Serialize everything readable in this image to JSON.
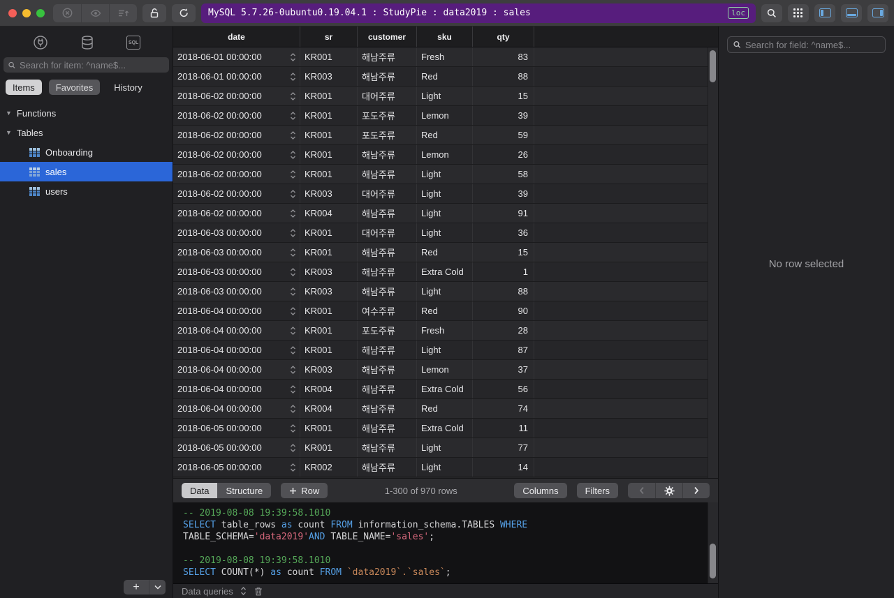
{
  "titlebar": {
    "title": "MySQL 5.7.26-0ubuntu0.19.04.1 : StudyPie : data2019 : sales",
    "loc_badge": "loc"
  },
  "sidebar": {
    "search_placeholder": "Search for item: ^name$...",
    "tabs": {
      "items": "Items",
      "favorites": "Favorites",
      "history": "History"
    },
    "sections": {
      "functions": "Functions",
      "tables": "Tables"
    },
    "tables": [
      {
        "label": "Onboarding",
        "selected": false
      },
      {
        "label": "sales",
        "selected": true
      },
      {
        "label": "users",
        "selected": false
      }
    ],
    "add_button": "+"
  },
  "grid": {
    "columns": [
      "date",
      "sr",
      "customer",
      "sku",
      "qty"
    ],
    "rows": [
      [
        "2018-06-01 00:00:00",
        "KR001",
        "해남주류",
        "Fresh",
        "83"
      ],
      [
        "2018-06-01 00:00:00",
        "KR003",
        "해남주류",
        "Red",
        "88"
      ],
      [
        "2018-06-02 00:00:00",
        "KR001",
        "대어주류",
        "Light",
        "15"
      ],
      [
        "2018-06-02 00:00:00",
        "KR001",
        "포도주류",
        "Lemon",
        "39"
      ],
      [
        "2018-06-02 00:00:00",
        "KR001",
        "포도주류",
        "Red",
        "59"
      ],
      [
        "2018-06-02 00:00:00",
        "KR001",
        "해남주류",
        "Lemon",
        "26"
      ],
      [
        "2018-06-02 00:00:00",
        "KR001",
        "해남주류",
        "Light",
        "58"
      ],
      [
        "2018-06-02 00:00:00",
        "KR003",
        "대어주류",
        "Light",
        "39"
      ],
      [
        "2018-06-02 00:00:00",
        "KR004",
        "해남주류",
        "Light",
        "91"
      ],
      [
        "2018-06-03 00:00:00",
        "KR001",
        "대어주류",
        "Light",
        "36"
      ],
      [
        "2018-06-03 00:00:00",
        "KR001",
        "해남주류",
        "Red",
        "15"
      ],
      [
        "2018-06-03 00:00:00",
        "KR003",
        "해남주류",
        "Extra Cold",
        "1"
      ],
      [
        "2018-06-03 00:00:00",
        "KR003",
        "해남주류",
        "Light",
        "88"
      ],
      [
        "2018-06-04 00:00:00",
        "KR001",
        "여수주류",
        "Red",
        "90"
      ],
      [
        "2018-06-04 00:00:00",
        "KR001",
        "포도주류",
        "Fresh",
        "28"
      ],
      [
        "2018-06-04 00:00:00",
        "KR001",
        "해남주류",
        "Light",
        "87"
      ],
      [
        "2018-06-04 00:00:00",
        "KR003",
        "해남주류",
        "Lemon",
        "37"
      ],
      [
        "2018-06-04 00:00:00",
        "KR004",
        "해남주류",
        "Extra Cold",
        "56"
      ],
      [
        "2018-06-04 00:00:00",
        "KR004",
        "해남주류",
        "Red",
        "74"
      ],
      [
        "2018-06-05 00:00:00",
        "KR001",
        "해남주류",
        "Extra Cold",
        "11"
      ],
      [
        "2018-06-05 00:00:00",
        "KR001",
        "해남주류",
        "Light",
        "77"
      ],
      [
        "2018-06-05 00:00:00",
        "KR002",
        "해남주류",
        "Light",
        "14"
      ]
    ]
  },
  "footer": {
    "data": "Data",
    "structure": "Structure",
    "row": "Row",
    "rows_info": "1-300 of 970 rows",
    "columns": "Columns",
    "filters": "Filters"
  },
  "sql_log": {
    "lines": [
      [
        [
          "c",
          "-- 2019-08-08 19:39:58.1010"
        ]
      ],
      [
        [
          "k",
          "SELECT"
        ],
        [
          "p",
          " table_rows "
        ],
        [
          "k",
          "as"
        ],
        [
          "p",
          " count "
        ],
        [
          "k",
          "FROM"
        ],
        [
          "p",
          " information_schema.TABLES "
        ],
        [
          "k",
          "WHERE"
        ]
      ],
      [
        [
          "p",
          "TABLE_SCHEMA="
        ],
        [
          "s",
          "'data2019'"
        ],
        [
          "k",
          "AND"
        ],
        [
          "p",
          " TABLE_NAME="
        ],
        [
          "s",
          "'sales'"
        ],
        [
          "p",
          ";"
        ]
      ],
      [],
      [
        [
          "c",
          "-- 2019-08-08 19:39:58.1010"
        ]
      ],
      [
        [
          "k",
          "SELECT"
        ],
        [
          "p",
          " COUNT(*) "
        ],
        [
          "k",
          "as"
        ],
        [
          "p",
          " count "
        ],
        [
          "k",
          "FROM"
        ],
        [
          "p",
          " "
        ],
        [
          "b",
          "`data2019`.`sales`"
        ],
        [
          "p",
          ";"
        ]
      ]
    ]
  },
  "bottom_bar": {
    "label": "Data queries"
  },
  "right_panel": {
    "search_placeholder": "Search for field: ^name$...",
    "empty_text": "No row selected"
  },
  "colors": {
    "accent_purple": "#571d7d",
    "selection_blue": "#2b66d8",
    "loc_green": "#93d2a4",
    "layout_blue": "#6aa9e0",
    "sql_comment": "#55a758",
    "sql_keyword": "#55a0e6",
    "sql_string": "#d8697d",
    "sql_backtick": "#c9885a"
  }
}
